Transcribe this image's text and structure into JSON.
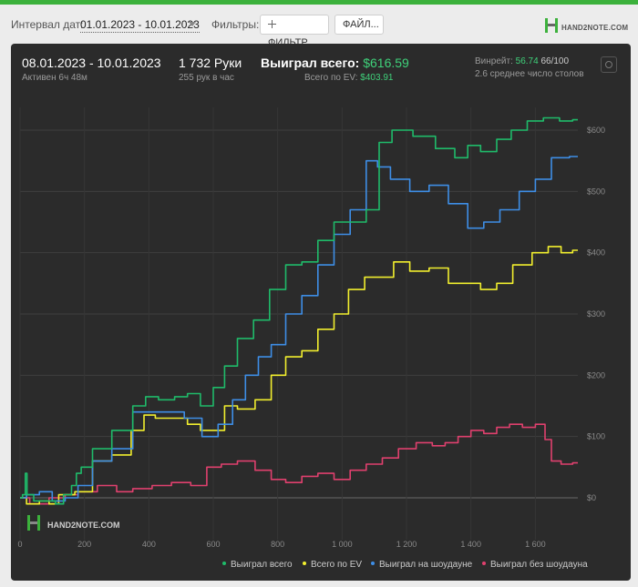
{
  "toolbar": {
    "interval_label": "Интервал дат:",
    "interval_value": "01.01.2023 - 10.01.2023",
    "filters_label": "Фильтры:",
    "filters_button": "ФИЛЬТР...",
    "file_button": "ФАЙЛ...",
    "logo_text": "HAND2NOTE.COM"
  },
  "summary": {
    "date_range": "08.01.2023 - 10.01.2023",
    "active": "Активен 6ч 48м",
    "hands": "1 732 Руки",
    "hands_rate": "255 рук в час",
    "won_label": "Выиграл всего:",
    "won_value": "$616.59",
    "ev_label": "Всего по EV:",
    "ev_value": "$403.91",
    "winrate_label": "Винрейт:",
    "winrate_value": "56.74",
    "winrate_fraction": "66/100",
    "tables": "2.6 среднее число столов"
  },
  "colors": {
    "accent": "#3cb13c",
    "green": "#1fbb6a",
    "yellow": "#f2ef2e",
    "blue": "#3e8ee6",
    "pink": "#e0406e",
    "panel_bg": "#2b2b2b"
  },
  "chart_data": {
    "type": "line",
    "watermark": "HAND2NOTE.COM",
    "xlabel": "",
    "ylabel": "",
    "xlim": [
      0,
      1732
    ],
    "ylim": [
      -30,
      630
    ],
    "x_ticks": [
      0,
      200,
      400,
      600,
      800,
      1000,
      1200,
      1400,
      1600
    ],
    "x_tick_labels": [
      "0",
      "200",
      "400",
      "600",
      "800",
      "1 000",
      "1 200",
      "1 400",
      "1 600"
    ],
    "y_ticks": [
      0,
      100,
      200,
      300,
      400,
      500,
      600
    ],
    "y_tick_labels": [
      "$0",
      "$100",
      "$200",
      "$300",
      "$400",
      "$500",
      "$600"
    ],
    "grid": true,
    "legend_position": "bottom-right",
    "series": [
      {
        "name": "Выиграл всего",
        "color": "#1fbb6a",
        "points": [
          [
            0,
            0
          ],
          [
            15,
            5
          ],
          [
            18,
            40
          ],
          [
            25,
            5
          ],
          [
            60,
            -5
          ],
          [
            100,
            -5
          ],
          [
            120,
            -10
          ],
          [
            150,
            5
          ],
          [
            170,
            20
          ],
          [
            180,
            40
          ],
          [
            200,
            50
          ],
          [
            250,
            80
          ],
          [
            320,
            110
          ],
          [
            380,
            150
          ],
          [
            400,
            165
          ],
          [
            460,
            160
          ],
          [
            500,
            165
          ],
          [
            540,
            170
          ],
          [
            580,
            150
          ],
          [
            620,
            180
          ],
          [
            650,
            215
          ],
          [
            700,
            260
          ],
          [
            750,
            290
          ],
          [
            800,
            340
          ],
          [
            850,
            380
          ],
          [
            900,
            385
          ],
          [
            950,
            420
          ],
          [
            1000,
            450
          ],
          [
            1050,
            450
          ],
          [
            1100,
            470
          ],
          [
            1130,
            580
          ],
          [
            1180,
            600
          ],
          [
            1260,
            590
          ],
          [
            1320,
            570
          ],
          [
            1380,
            555
          ],
          [
            1400,
            575
          ],
          [
            1460,
            565
          ],
          [
            1500,
            585
          ],
          [
            1550,
            600
          ],
          [
            1600,
            615
          ],
          [
            1650,
            620
          ],
          [
            1700,
            615
          ],
          [
            1732,
            617
          ]
        ]
      },
      {
        "name": "Всего по EV",
        "color": "#f2ef2e",
        "points": [
          [
            0,
            0
          ],
          [
            40,
            -10
          ],
          [
            80,
            -5
          ],
          [
            100,
            -10
          ],
          [
            140,
            5
          ],
          [
            200,
            10
          ],
          [
            250,
            60
          ],
          [
            320,
            70
          ],
          [
            370,
            110
          ],
          [
            400,
            135
          ],
          [
            440,
            130
          ],
          [
            500,
            130
          ],
          [
            540,
            120
          ],
          [
            580,
            110
          ],
          [
            620,
            110
          ],
          [
            650,
            150
          ],
          [
            700,
            145
          ],
          [
            760,
            160
          ],
          [
            800,
            200
          ],
          [
            850,
            230
          ],
          [
            900,
            240
          ],
          [
            950,
            275
          ],
          [
            1000,
            300
          ],
          [
            1040,
            340
          ],
          [
            1100,
            360
          ],
          [
            1140,
            360
          ],
          [
            1180,
            385
          ],
          [
            1240,
            370
          ],
          [
            1300,
            375
          ],
          [
            1360,
            350
          ],
          [
            1400,
            350
          ],
          [
            1460,
            340
          ],
          [
            1500,
            350
          ],
          [
            1560,
            380
          ],
          [
            1620,
            400
          ],
          [
            1660,
            410
          ],
          [
            1700,
            400
          ],
          [
            1732,
            404
          ]
        ]
      },
      {
        "name": "Выиграл на шоудауне",
        "color": "#3e8ee6",
        "points": [
          [
            0,
            0
          ],
          [
            40,
            5
          ],
          [
            80,
            10
          ],
          [
            120,
            -5
          ],
          [
            160,
            0
          ],
          [
            200,
            20
          ],
          [
            250,
            60
          ],
          [
            320,
            80
          ],
          [
            380,
            140
          ],
          [
            420,
            140
          ],
          [
            480,
            140
          ],
          [
            540,
            130
          ],
          [
            590,
            100
          ],
          [
            640,
            120
          ],
          [
            680,
            160
          ],
          [
            720,
            200
          ],
          [
            760,
            230
          ],
          [
            800,
            250
          ],
          [
            850,
            300
          ],
          [
            900,
            330
          ],
          [
            950,
            380
          ],
          [
            1000,
            430
          ],
          [
            1050,
            470
          ],
          [
            1100,
            550
          ],
          [
            1120,
            540
          ],
          [
            1180,
            520
          ],
          [
            1240,
            500
          ],
          [
            1300,
            510
          ],
          [
            1360,
            480
          ],
          [
            1420,
            440
          ],
          [
            1460,
            450
          ],
          [
            1520,
            470
          ],
          [
            1580,
            500
          ],
          [
            1620,
            520
          ],
          [
            1680,
            555
          ],
          [
            1732,
            557
          ]
        ]
      },
      {
        "name": "Выиграл без шоудауна",
        "color": "#e0406e",
        "points": [
          [
            0,
            0
          ],
          [
            60,
            -10
          ],
          [
            120,
            0
          ],
          [
            160,
            5
          ],
          [
            200,
            10
          ],
          [
            280,
            20
          ],
          [
            320,
            10
          ],
          [
            380,
            15
          ],
          [
            440,
            20
          ],
          [
            500,
            25
          ],
          [
            560,
            20
          ],
          [
            600,
            50
          ],
          [
            650,
            55
          ],
          [
            700,
            60
          ],
          [
            760,
            45
          ],
          [
            800,
            30
          ],
          [
            850,
            25
          ],
          [
            900,
            35
          ],
          [
            950,
            40
          ],
          [
            1000,
            30
          ],
          [
            1050,
            45
          ],
          [
            1100,
            55
          ],
          [
            1150,
            65
          ],
          [
            1200,
            80
          ],
          [
            1260,
            90
          ],
          [
            1300,
            85
          ],
          [
            1340,
            90
          ],
          [
            1380,
            100
          ],
          [
            1420,
            110
          ],
          [
            1460,
            105
          ],
          [
            1500,
            115
          ],
          [
            1540,
            120
          ],
          [
            1580,
            115
          ],
          [
            1620,
            120
          ],
          [
            1640,
            95
          ],
          [
            1660,
            60
          ],
          [
            1700,
            55
          ],
          [
            1732,
            57
          ]
        ]
      }
    ]
  }
}
